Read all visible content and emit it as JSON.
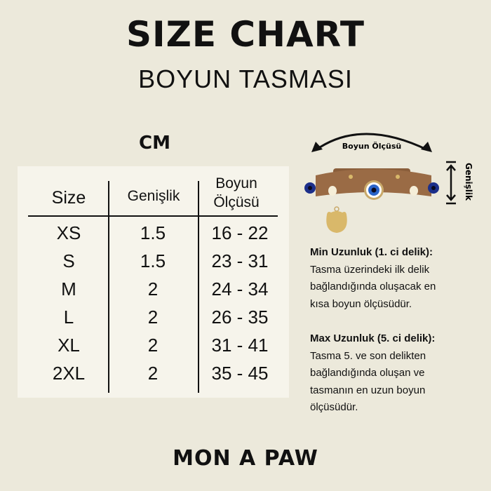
{
  "header": {
    "title": "SIZE CHART",
    "subtitle": "BOYUN TASMASI"
  },
  "unit": "CM",
  "table": {
    "columns": [
      "Size",
      "Genişlik",
      "Boyun",
      "Ölçüsü"
    ],
    "rows": [
      {
        "size": "XS",
        "width": "1.5",
        "neck": "16 - 22"
      },
      {
        "size": "S",
        "width": "1.5",
        "neck": "23 - 31"
      },
      {
        "size": "M",
        "width": "2",
        "neck": "24 - 34"
      },
      {
        "size": "L",
        "width": "2",
        "neck": "26 - 35"
      },
      {
        "size": "XL",
        "width": "2",
        "neck": "31 - 41"
      },
      {
        "size": "2XL",
        "width": "2",
        "neck": "35 - 45"
      }
    ]
  },
  "diagram": {
    "neck_label": "Boyun Ölçüsü",
    "width_label": "Genişlik",
    "tag_text": "MON A PAW",
    "collar_color": "#9A6B45"
  },
  "info": {
    "min_title": "Min Uzunluk (1. ci delik):",
    "min_lines": [
      "Tasma üzerindeki ilk delik",
      "bağlandığında oluşacak en",
      "kısa boyun ölçüsüdür."
    ],
    "max_title": "Max Uzunluk (5. ci delik):",
    "max_lines": [
      "Tasma 5. ve son delikten",
      "bağlandığında oluşan ve",
      "tasmanın en uzun boyun",
      "ölçüsüdür."
    ]
  },
  "brand": "MON A PAW"
}
